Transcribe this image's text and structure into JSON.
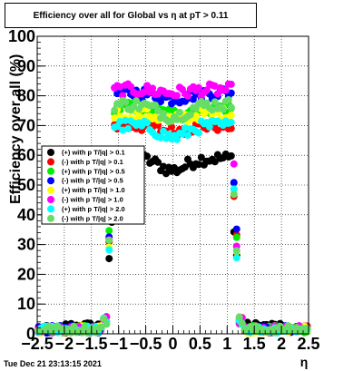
{
  "chart_data": {
    "type": "scatter",
    "title": "Efficiency over all for Global vs   η at pT > 0.11",
    "xlabel": "η",
    "ylabel": "Efficiency over all (%)",
    "xlim": [
      -2.5,
      2.5
    ],
    "ylim": [
      0,
      100
    ],
    "xticks": [
      "−2.5",
      "−2",
      "−1.5",
      "−1",
      "−0.5",
      "0",
      "0.5",
      "1",
      "1.5",
      "2",
      "2.5"
    ],
    "yticks": [
      "0",
      "10",
      "20",
      "30",
      "40",
      "50",
      "60",
      "70",
      "80",
      "90",
      "100"
    ],
    "grid": true,
    "legend_position": "left",
    "series": [
      {
        "name": "(+) with p T/|q| > 0.1",
        "color": "#000000",
        "plateau": 59,
        "center_dip": 55
      },
      {
        "name": "(-) with p T/|q| > 0.1",
        "color": "#ff0000",
        "plateau": 70,
        "center_dip": 68
      },
      {
        "name": "(+) with p T/|q| > 0.5",
        "color": "#00ee00",
        "plateau": 76,
        "center_dip": 74
      },
      {
        "name": "(-) with p T/|q| > 0.5",
        "color": "#0000ff",
        "plateau": 81,
        "center_dip": 79
      },
      {
        "name": "(+) with p T/|q| > 1.0",
        "color": "#ffff00",
        "plateau": 74,
        "center_dip": 72
      },
      {
        "name": "(-) with p T/|q| > 1.0",
        "color": "#ff00ff",
        "plateau": 82,
        "center_dip": 81
      },
      {
        "name": "(+) with p T/|q| > 2.0",
        "color": "#00ffff",
        "plateau": 70,
        "center_dip": 66
      },
      {
        "name": "(-) with p T/|q| > 2.0",
        "color": "#66dd66",
        "plateau": 77,
        "center_dip": 73
      }
    ]
  },
  "timestamp": "Tue Dec 21 23:13:15 2021"
}
